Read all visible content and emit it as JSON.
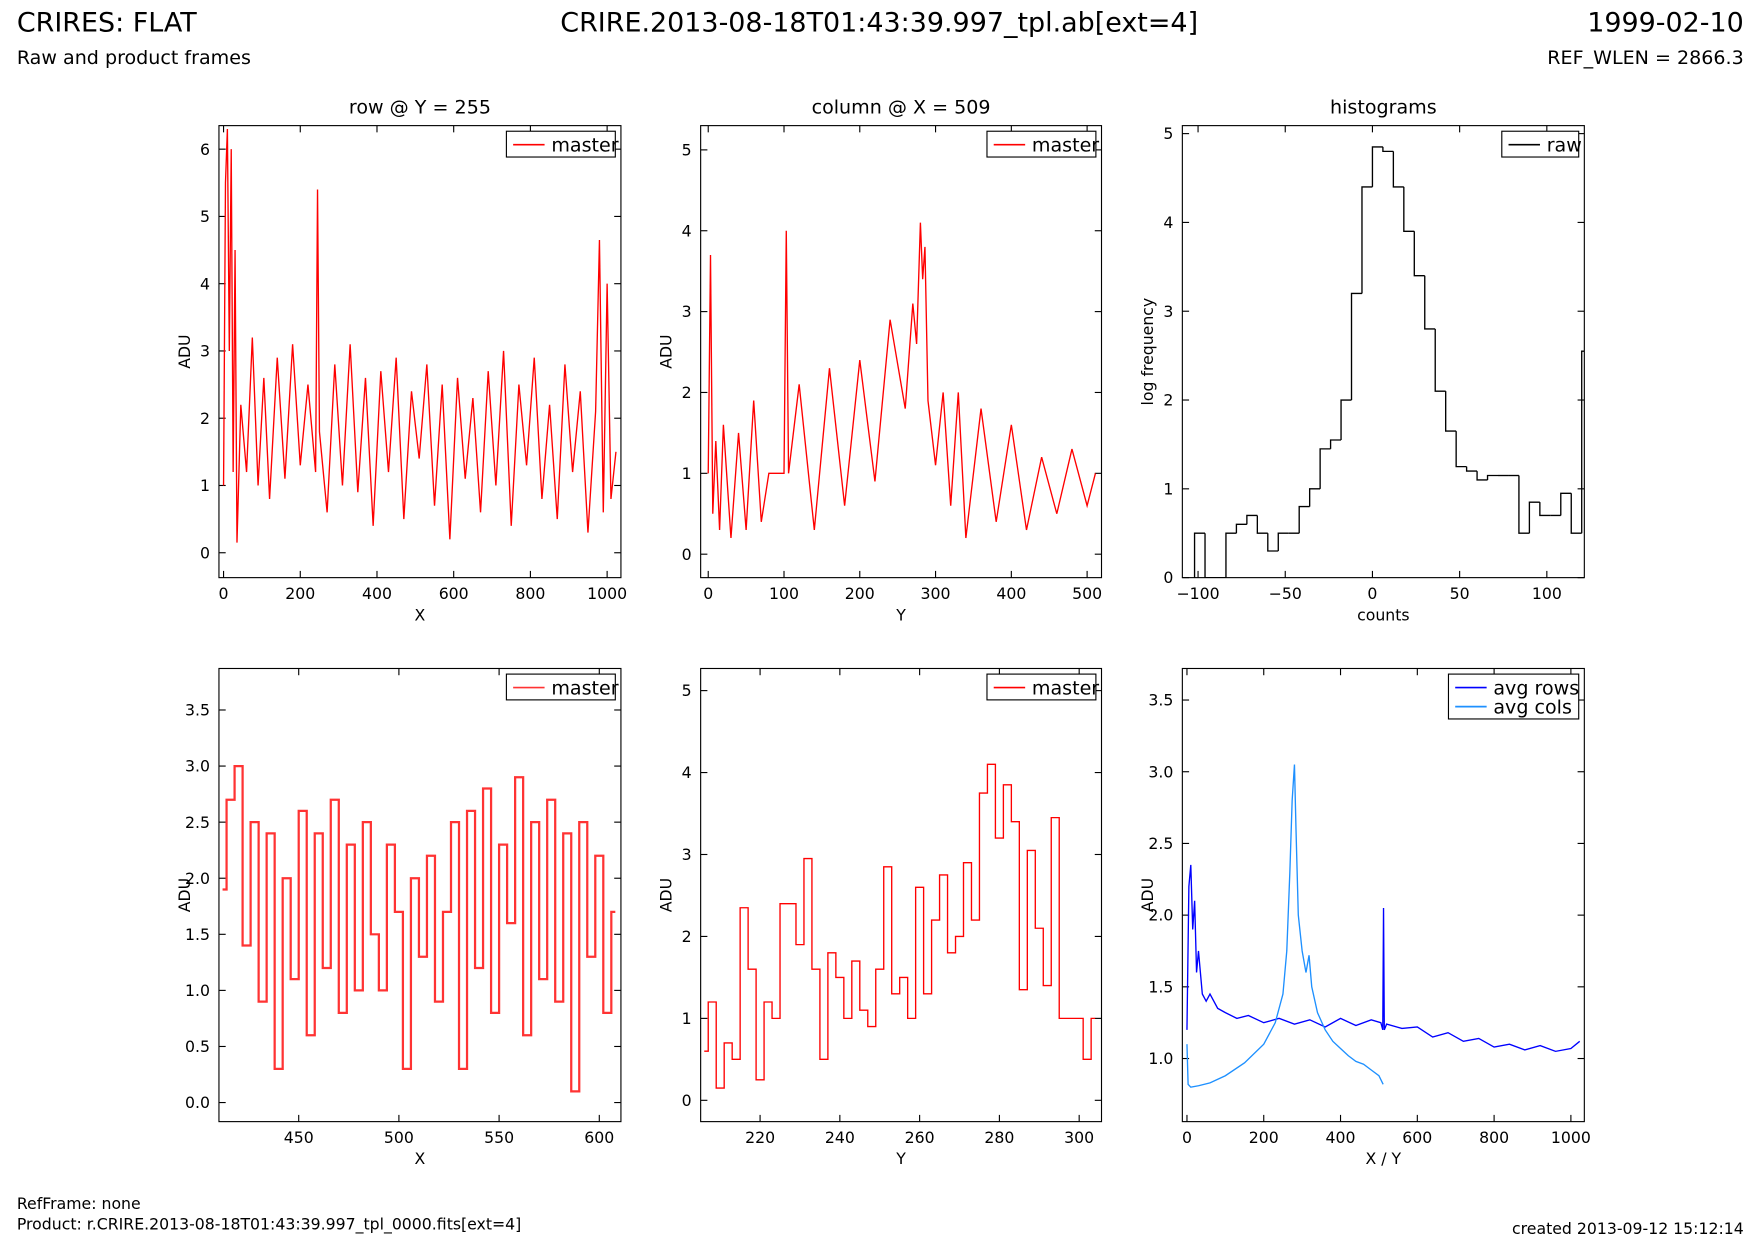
{
  "header": {
    "title": "CRIRES: FLAT",
    "subtitle": "Raw and product frames",
    "file": "CRIRE.2013-08-18T01:43:39.997_tpl.ab[ext=4]",
    "date": "1999-02-10",
    "ref_wlen": "REF_WLEN = 2866.3"
  },
  "footer": {
    "refframe": "RefFrame: none",
    "product": "Product: r.CRIRE.2013-08-18T01:43:39.997_tpl_0000.fits[ext=4]",
    "created": "created 2013-09-12 15:12:14"
  },
  "chart_data": [
    {
      "type": "line",
      "title": "row @ Y = 255",
      "x_label": "X",
      "y_label": "ADU",
      "xlim": [
        -12,
        1036
      ],
      "ylim": [
        -0.37,
        6.35
      ],
      "xticks": [
        0,
        200,
        400,
        600,
        800,
        1000
      ],
      "yticks": [
        0,
        1,
        2,
        3,
        4,
        5,
        6
      ],
      "x": [
        0,
        5,
        10,
        15,
        20,
        25,
        30,
        35,
        45,
        60,
        75,
        90,
        105,
        120,
        140,
        160,
        180,
        200,
        220,
        240,
        245,
        250,
        270,
        290,
        310,
        330,
        350,
        370,
        390,
        410,
        430,
        450,
        470,
        490,
        510,
        530,
        550,
        570,
        590,
        610,
        630,
        650,
        670,
        690,
        710,
        730,
        750,
        770,
        790,
        810,
        830,
        850,
        870,
        890,
        910,
        930,
        950,
        970,
        980,
        990,
        1000,
        1010,
        1023
      ],
      "series": [
        {
          "name": "master",
          "color": "#ff0000",
          "values": [
            1.0,
            5.5,
            6.3,
            3.0,
            6.0,
            1.2,
            4.5,
            0.15,
            2.2,
            1.2,
            3.2,
            1.0,
            2.6,
            0.8,
            2.9,
            1.1,
            3.1,
            1.3,
            2.5,
            1.2,
            5.4,
            1.8,
            0.6,
            2.8,
            1.0,
            3.1,
            0.9,
            2.6,
            0.4,
            2.7,
            1.2,
            2.9,
            0.5,
            2.4,
            1.4,
            2.8,
            0.7,
            2.5,
            0.2,
            2.6,
            1.1,
            2.3,
            0.6,
            2.7,
            1.0,
            3.0,
            0.4,
            2.5,
            1.3,
            2.9,
            0.8,
            2.2,
            0.5,
            2.8,
            1.2,
            2.4,
            0.3,
            2.1,
            4.65,
            0.6,
            4.0,
            0.8,
            1.5
          ]
        }
      ]
    },
    {
      "type": "line",
      "title": "column @ X = 509",
      "x_label": "Y",
      "y_label": "ADU",
      "xlim": [
        -10,
        519
      ],
      "ylim": [
        -0.29,
        5.3
      ],
      "xticks": [
        0,
        100,
        200,
        300,
        400,
        500
      ],
      "yticks": [
        0,
        1,
        2,
        3,
        4,
        5
      ],
      "x": [
        0,
        3,
        6,
        10,
        15,
        20,
        30,
        40,
        50,
        60,
        70,
        80,
        90,
        100,
        103,
        106,
        120,
        140,
        160,
        180,
        200,
        220,
        240,
        260,
        270,
        275,
        280,
        283,
        286,
        290,
        300,
        310,
        320,
        330,
        340,
        360,
        380,
        400,
        420,
        440,
        460,
        480,
        500,
        511
      ],
      "series": [
        {
          "name": "master",
          "color": "#ff0000",
          "values": [
            1.0,
            3.7,
            0.5,
            1.4,
            0.3,
            1.6,
            0.2,
            1.5,
            0.3,
            1.9,
            0.4,
            1.0,
            1.0,
            1.0,
            4.0,
            1.0,
            2.1,
            0.3,
            2.3,
            0.6,
            2.4,
            0.9,
            2.9,
            1.8,
            3.1,
            2.6,
            4.1,
            3.4,
            3.8,
            1.9,
            1.1,
            2.0,
            0.6,
            2.0,
            0.2,
            1.8,
            0.4,
            1.6,
            0.3,
            1.2,
            0.5,
            1.3,
            0.6,
            1.0
          ]
        }
      ]
    },
    {
      "type": "histogram",
      "title": "histograms",
      "x_label": "counts",
      "y_label": "log frequency",
      "xlim": [
        -109,
        121.5
      ],
      "ylim": [
        0,
        5.09
      ],
      "xticks": [
        {
          "value": -100,
          "label": "−100"
        },
        {
          "value": -50,
          "label": "−50"
        },
        0,
        50,
        100
      ],
      "yticks": [
        0,
        1,
        2,
        3,
        4,
        5
      ],
      "bins": [
        -102,
        -96,
        -90,
        -84,
        -78,
        -72,
        -66,
        -60,
        -54,
        -48,
        -42,
        -36,
        -30,
        -24,
        -18,
        -12,
        -6,
        0,
        6,
        12,
        18,
        24,
        30,
        36,
        42,
        48,
        54,
        60,
        66,
        72,
        78,
        84,
        90,
        96,
        102,
        108,
        114,
        120,
        126
      ],
      "series": [
        {
          "name": "raw",
          "color": "#000000",
          "values": [
            0.5,
            0,
            0,
            0.5,
            0.6,
            0.7,
            0.5,
            0.3,
            0.5,
            0.5,
            0.8,
            1.0,
            1.45,
            1.55,
            2.0,
            3.2,
            4.4,
            4.85,
            4.8,
            4.4,
            3.9,
            3.4,
            2.8,
            2.1,
            1.65,
            1.25,
            1.2,
            1.1,
            1.15,
            1.15,
            1.15,
            0.5,
            0.85,
            0.7,
            0.7,
            0.95,
            0.5,
            2.55
          ]
        }
      ]
    },
    {
      "type": "line",
      "drawstyle": "steps-mid",
      "x_label": "X",
      "y_label": "ADU",
      "xlim": [
        410.2,
        610.8
      ],
      "ylim": [
        -0.17,
        3.87
      ],
      "xticks": [
        450,
        500,
        550,
        600
      ],
      "yticks": [
        {
          "value": 0,
          "label": "0.0"
        },
        0.5,
        {
          "value": 1,
          "label": "1.0"
        },
        1.5,
        {
          "value": 2,
          "label": "2.0"
        },
        2.5,
        {
          "value": 3,
          "label": "3.0"
        },
        3.5
      ],
      "x": [
        412,
        416,
        420,
        424,
        428,
        432,
        436,
        440,
        444,
        448,
        452,
        456,
        460,
        464,
        468,
        472,
        476,
        480,
        484,
        488,
        492,
        496,
        500,
        504,
        508,
        512,
        516,
        520,
        524,
        528,
        532,
        536,
        540,
        544,
        548,
        552,
        556,
        560,
        564,
        568,
        572,
        576,
        580,
        584,
        588,
        592,
        596,
        600,
        604,
        608
      ],
      "series": [
        {
          "name": "master",
          "color": "#ff3333",
          "values": [
            1.9,
            2.7,
            3.0,
            1.4,
            2.5,
            0.9,
            2.4,
            0.3,
            2.0,
            1.1,
            2.6,
            0.6,
            2.4,
            1.2,
            2.7,
            0.8,
            2.3,
            1.0,
            2.5,
            1.5,
            1.0,
            2.3,
            1.7,
            0.3,
            2.0,
            1.3,
            2.2,
            0.9,
            1.7,
            2.5,
            0.3,
            2.6,
            1.2,
            2.8,
            0.8,
            2.3,
            1.6,
            2.9,
            0.6,
            2.5,
            1.1,
            2.7,
            0.9,
            2.4,
            0.1,
            2.5,
            1.3,
            2.2,
            0.8,
            1.7
          ]
        }
      ]
    },
    {
      "type": "line",
      "drawstyle": "steps-mid",
      "x_label": "Y",
      "y_label": "ADU",
      "xlim": [
        205.1,
        305.6
      ],
      "ylim": [
        -0.26,
        5.27
      ],
      "xticks": [
        220,
        240,
        260,
        280,
        300
      ],
      "yticks": [
        0,
        1,
        2,
        3,
        4,
        5
      ],
      "x": [
        206,
        208,
        210,
        212,
        214,
        216,
        218,
        220,
        222,
        224,
        226,
        228,
        230,
        232,
        234,
        236,
        238,
        240,
        242,
        244,
        246,
        248,
        250,
        252,
        254,
        256,
        258,
        260,
        262,
        264,
        266,
        268,
        270,
        272,
        274,
        276,
        278,
        280,
        282,
        284,
        286,
        288,
        290,
        292,
        294,
        296,
        298,
        300,
        302,
        304
      ],
      "series": [
        {
          "name": "master",
          "color": "#ff0000",
          "values": [
            0.6,
            1.2,
            0.15,
            0.7,
            0.5,
            2.35,
            1.6,
            0.25,
            1.2,
            1.0,
            2.4,
            2.4,
            1.9,
            2.95,
            1.6,
            0.5,
            1.8,
            1.5,
            1.0,
            1.7,
            1.1,
            0.9,
            1.6,
            2.85,
            1.3,
            1.5,
            1.0,
            2.6,
            1.3,
            2.2,
            2.75,
            1.8,
            2.0,
            2.9,
            2.2,
            3.75,
            4.1,
            3.2,
            3.85,
            3.4,
            1.35,
            3.05,
            2.1,
            1.4,
            3.45,
            1.0,
            1.0,
            1.0,
            0.5,
            1.0
          ]
        }
      ]
    },
    {
      "type": "line",
      "x_label": "X / Y",
      "y_label": "ADU",
      "xlim": [
        -12,
        1035
      ],
      "ylim": [
        0.56,
        3.72
      ],
      "xticks": [
        0,
        200,
        400,
        600,
        800,
        1000
      ],
      "yticks": [
        {
          "value": 1,
          "label": "1.0"
        },
        1.5,
        {
          "value": 2,
          "label": "2.0"
        },
        2.5,
        {
          "value": 3,
          "label": "3.0"
        },
        3.5
      ],
      "series": [
        {
          "name": "avg rows",
          "color": "#0000ff",
          "x": [
            0,
            5,
            10,
            15,
            20,
            25,
            30,
            40,
            50,
            60,
            80,
            100,
            130,
            160,
            200,
            240,
            280,
            320,
            360,
            400,
            440,
            480,
            505,
            510,
            512,
            514,
            520,
            560,
            600,
            640,
            680,
            720,
            760,
            800,
            840,
            880,
            920,
            960,
            1000,
            1023
          ],
          "values": [
            1.2,
            2.2,
            2.35,
            1.9,
            2.1,
            1.6,
            1.75,
            1.45,
            1.4,
            1.45,
            1.35,
            1.32,
            1.28,
            1.3,
            1.25,
            1.28,
            1.24,
            1.27,
            1.22,
            1.28,
            1.23,
            1.27,
            1.25,
            1.2,
            2.05,
            1.2,
            1.24,
            1.21,
            1.22,
            1.15,
            1.18,
            1.12,
            1.14,
            1.08,
            1.1,
            1.06,
            1.09,
            1.05,
            1.07,
            1.12
          ]
        },
        {
          "name": "avg cols",
          "color": "#1e90ff",
          "x": [
            0,
            3,
            10,
            30,
            60,
            100,
            150,
            200,
            230,
            250,
            260,
            268,
            274,
            280,
            284,
            290,
            300,
            310,
            318,
            325,
            340,
            360,
            380,
            400,
            420,
            440,
            460,
            480,
            500,
            511
          ],
          "values": [
            1.1,
            0.82,
            0.8,
            0.81,
            0.83,
            0.88,
            0.97,
            1.1,
            1.25,
            1.45,
            1.75,
            2.3,
            2.8,
            3.05,
            2.6,
            2.0,
            1.75,
            1.6,
            1.72,
            1.5,
            1.32,
            1.2,
            1.12,
            1.07,
            1.02,
            0.98,
            0.96,
            0.92,
            0.88,
            0.82
          ]
        }
      ]
    }
  ]
}
